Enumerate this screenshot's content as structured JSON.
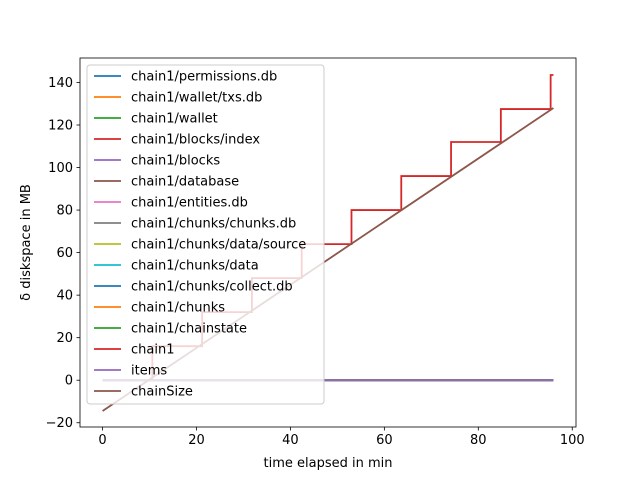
{
  "chart_data": {
    "type": "line",
    "title": "",
    "xlabel": "time elapsed in min",
    "ylabel": "δ diskspace in MB",
    "xlim": [
      -4.8,
      100.8
    ],
    "ylim": [
      -22,
      151.5
    ],
    "xticks": [
      0,
      20,
      40,
      60,
      80,
      100
    ],
    "yticks": [
      -20,
      0,
      20,
      40,
      60,
      80,
      100,
      120,
      140
    ],
    "legend": "upper-left",
    "series": [
      {
        "name": "chain1/permissions.db",
        "color": "#1f77b4",
        "x": [
          0,
          96
        ],
        "y": [
          0,
          0
        ]
      },
      {
        "name": "chain1/wallet/txs.db",
        "color": "#ff7f0e",
        "x": [
          0,
          96
        ],
        "y": [
          0,
          0
        ]
      },
      {
        "name": "chain1/wallet",
        "color": "#2ca02c",
        "x": [
          0,
          96
        ],
        "y": [
          0,
          0
        ]
      },
      {
        "name": "chain1/blocks/index",
        "color": "#d62728",
        "x": [
          0,
          96
        ],
        "y": [
          0,
          0
        ]
      },
      {
        "name": "chain1/blocks",
        "color": "#9467bd",
        "x": [
          0,
          96
        ],
        "y": [
          0,
          0
        ]
      },
      {
        "name": "chain1/database",
        "color": "#8c564b",
        "x": [
          0,
          96
        ],
        "y": [
          0,
          0
        ]
      },
      {
        "name": "chain1/entities.db",
        "color": "#e377c2",
        "x": [
          0,
          96
        ],
        "y": [
          0,
          0
        ]
      },
      {
        "name": "chain1/chunks/chunks.db",
        "color": "#7f7f7f",
        "x": [
          0,
          96
        ],
        "y": [
          0,
          0
        ]
      },
      {
        "name": "chain1/chunks/data/source",
        "color": "#bcbd22",
        "x": [
          0,
          96
        ],
        "y": [
          0,
          0
        ]
      },
      {
        "name": "chain1/chunks/data",
        "color": "#17becf",
        "x": [
          0,
          96
        ],
        "y": [
          0,
          0
        ]
      },
      {
        "name": "chain1/chunks/collect.db",
        "color": "#1f77b4",
        "x": [
          0,
          96
        ],
        "y": [
          0,
          0
        ]
      },
      {
        "name": "chain1/chunks",
        "color": "#ff7f0e",
        "x": [
          0,
          96
        ],
        "y": [
          0,
          0
        ]
      },
      {
        "name": "chain1/chainstate",
        "color": "#2ca02c",
        "x": [
          0,
          96
        ],
        "y": [
          0,
          0
        ]
      },
      {
        "name": "chain1",
        "color": "#d62728",
        "x": [
          0,
          10.6,
          10.6,
          21.2,
          21.2,
          31.8,
          31.8,
          42.4,
          42.4,
          53,
          53,
          63.6,
          63.6,
          74.2,
          74.2,
          84.8,
          84.8,
          95.4,
          95.4,
          96
        ],
        "y": [
          0,
          0,
          16,
          16,
          32,
          32,
          48,
          48,
          64,
          64,
          80,
          80,
          96,
          96,
          112,
          112,
          127.5,
          127.5,
          143.5,
          143.5
        ]
      },
      {
        "name": "items",
        "color": "#9467bd",
        "x": [
          0,
          96
        ],
        "y": [
          0,
          0
        ]
      },
      {
        "name": "chainSize",
        "color": "#8c564b",
        "x": [
          0,
          96
        ],
        "y": [
          -14.5,
          128
        ]
      }
    ]
  }
}
